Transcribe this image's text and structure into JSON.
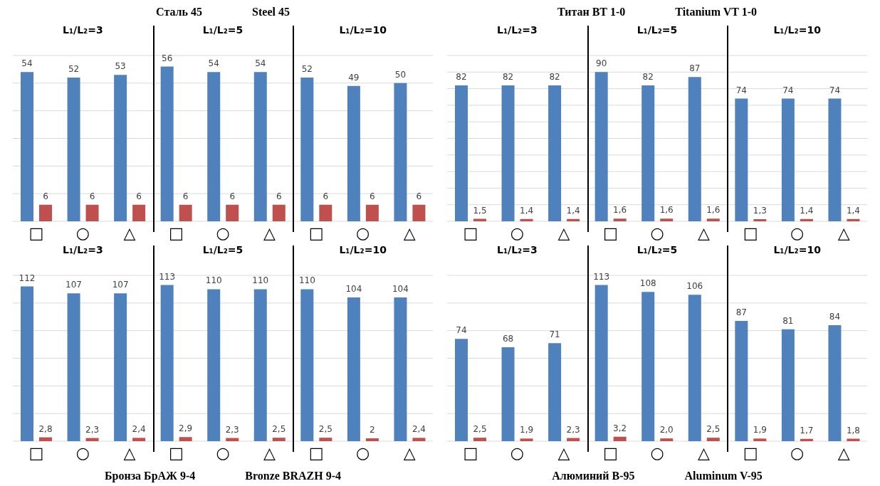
{
  "chart_data": [
    {
      "type": "bar",
      "title": "Сталь 45",
      "subtitle": "Steel 45",
      "categories": [
        "□",
        "○",
        "△",
        "□",
        "○",
        "△",
        "□",
        "○",
        "△"
      ],
      "annotations": [
        "L₁/L₂=3",
        "L₁/L₂=5",
        "L₁/L₂=10"
      ],
      "series": [
        {
          "color": "#4f81bd",
          "values": [
            54,
            52,
            53,
            56,
            54,
            54,
            52,
            49,
            50
          ],
          "value_labels": [
            "54",
            "52",
            "53",
            "56",
            "54",
            "54",
            "52",
            "49",
            "50"
          ]
        },
        {
          "color": "#c0504d",
          "values": [
            6,
            6,
            6,
            6,
            6,
            6,
            6,
            6,
            6
          ],
          "value_labels": [
            "6",
            "6",
            "6",
            "6",
            "6",
            "6",
            "6",
            "6",
            "6"
          ]
        }
      ],
      "ylim": [
        0,
        60
      ],
      "yticks": [
        {
          "value": 0,
          "label": null
        },
        {
          "value": 10,
          "label": null
        },
        {
          "value": 20,
          "label": null
        },
        {
          "value": 30,
          "label": null
        },
        {
          "value": 40,
          "label": null
        },
        {
          "value": 50,
          "label": null
        },
        {
          "value": 60,
          "label": null
        }
      ],
      "grid": "y",
      "tick_labels": "x"
    },
    {
      "type": "bar",
      "title": "Титан ВТ 1-0",
      "subtitle": "Titanium  VT 1-0",
      "categories": [
        "□",
        "○",
        "△",
        "□",
        "○",
        "△",
        "□",
        "○",
        "△"
      ],
      "annotations": [
        "L₁/L₂=3",
        "L₁/L₂=5",
        "L₁/L₂=10"
      ],
      "series": [
        {
          "color": "#4f81bd",
          "values": [
            82,
            82,
            82,
            90,
            82,
            87,
            74,
            74,
            74
          ],
          "value_labels": [
            "82",
            "82",
            "82",
            "90",
            "82",
            "87",
            "74",
            "74",
            "74"
          ]
        },
        {
          "color": "#c0504d",
          "values": [
            1.5,
            1.4,
            1.4,
            1.6,
            1.6,
            1.6,
            1.3,
            1.4,
            1.4
          ],
          "value_labels": [
            "1,5",
            "1,4",
            "1,4",
            "1,6",
            "1,6",
            "1,6",
            "1,3",
            "1,4",
            "1,4"
          ]
        }
      ],
      "ylim": [
        0,
        100
      ],
      "yticks": [
        {
          "value": 0,
          "label": null
        },
        {
          "value": 10,
          "label": null
        },
        {
          "value": 20,
          "label": null
        },
        {
          "value": 30,
          "label": null
        },
        {
          "value": 40,
          "label": null
        },
        {
          "value": 50,
          "label": null
        },
        {
          "value": 60,
          "label": null
        },
        {
          "value": 70,
          "label": null
        },
        {
          "value": 80,
          "label": null
        },
        {
          "value": 90,
          "label": null
        },
        {
          "value": 100,
          "label": null
        }
      ],
      "grid": "y",
      "tick_labels": "x"
    },
    {
      "type": "bar",
      "title": "Бронза БрАЖ 9-4",
      "subtitle": "Bronze BRAZH 9-4",
      "categories": [
        "□",
        "○",
        "△",
        "□",
        "○",
        "△",
        "□",
        "○",
        "△"
      ],
      "annotations": [
        "L₁/L₂=3",
        "L₁/L₂=5",
        "L₁/L₂=10"
      ],
      "series": [
        {
          "color": "#4f81bd",
          "values": [
            112,
            107,
            107,
            113,
            110,
            110,
            110,
            104,
            104
          ],
          "value_labels": [
            "112",
            "107",
            "107",
            "113",
            "110",
            "110",
            "110",
            "104",
            "104"
          ]
        },
        {
          "color": "#c0504d",
          "values": [
            2.8,
            2.3,
            2.4,
            2.9,
            2.3,
            2.5,
            2.5,
            2,
            2.4
          ],
          "value_labels": [
            "2,8",
            "2,3",
            "2,4",
            "2,9",
            "2,3",
            "2,5",
            "2,5",
            "2",
            "2,4"
          ]
        }
      ],
      "ylim": [
        0,
        120
      ],
      "yticks": [
        {
          "value": 0,
          "label": null
        },
        {
          "value": 20,
          "label": null
        },
        {
          "value": 40,
          "label": null
        },
        {
          "value": 60,
          "label": null
        },
        {
          "value": 80,
          "label": null
        },
        {
          "value": 100,
          "label": null
        },
        {
          "value": 120,
          "label": null
        }
      ],
      "grid": "y",
      "tick_labels": "x"
    },
    {
      "type": "bar",
      "title": "Алюминий В-95",
      "subtitle": "Aluminum V-95",
      "categories": [
        "□",
        "○",
        "△",
        "□",
        "○",
        "△",
        "□",
        "○",
        "△"
      ],
      "annotations": [
        "L₁/L₂=3",
        "L₁/L₂=5",
        "L₁/L₂=10"
      ],
      "series": [
        {
          "color": "#4f81bd",
          "values": [
            74,
            68,
            71,
            113,
            108,
            106,
            87,
            81,
            84
          ],
          "value_labels": [
            "74",
            "68",
            "71",
            "113",
            "108",
            "106",
            "87",
            "81",
            "84"
          ]
        },
        {
          "color": "#c0504d",
          "values": [
            2.5,
            1.9,
            2.3,
            3.2,
            2.0,
            2.5,
            1.9,
            1.7,
            1.8
          ],
          "value_labels": [
            "2,5",
            "1,9",
            "2,3",
            "3,2",
            "2,0",
            "2,5",
            "1,9",
            "1,7",
            "1,8"
          ]
        }
      ],
      "ylim": [
        0,
        120
      ],
      "yticks": [
        {
          "value": 0,
          "label": null
        },
        {
          "value": 20,
          "label": null
        },
        {
          "value": 40,
          "label": null
        },
        {
          "value": 60,
          "label": null
        },
        {
          "value": 80,
          "label": null
        },
        {
          "value": 100,
          "label": null
        },
        {
          "value": 120,
          "label": null
        }
      ],
      "grid": "y",
      "tick_labels": "x"
    }
  ]
}
